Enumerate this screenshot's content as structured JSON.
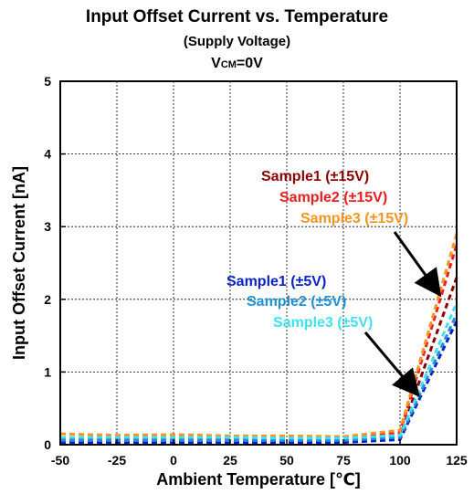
{
  "chart_data": {
    "type": "line",
    "title": "Input Offset Current vs. Temperature",
    "subtitle": "(Supply Voltage)",
    "condition": {
      "main": "V",
      "sub": "CM",
      "rest": "=0V"
    },
    "xlabel": "Ambient Temperature [℃]",
    "ylabel": "Input Offset Current [nA]",
    "xlim": [
      -50,
      125
    ],
    "ylim": [
      0,
      5
    ],
    "xticks": [
      -50,
      -25,
      0,
      25,
      50,
      75,
      100,
      125
    ],
    "yticks": [
      0,
      1,
      2,
      3,
      4,
      5
    ],
    "grid": true,
    "line_style": "dashed",
    "series": [
      {
        "name": "Sample1 (±15V)",
        "color": "#8b0000",
        "x": [
          -50,
          -25,
          0,
          25,
          50,
          75,
          100,
          125
        ],
        "y": [
          0.06,
          0.06,
          0.07,
          0.06,
          0.06,
          0.06,
          0.13,
          2.3
        ]
      },
      {
        "name": "Sample2 (±15V)",
        "color": "#ee1c1c",
        "x": [
          -50,
          -25,
          0,
          25,
          50,
          75,
          100,
          125
        ],
        "y": [
          0.08,
          0.08,
          0.09,
          0.08,
          0.08,
          0.08,
          0.17,
          2.75
        ]
      },
      {
        "name": "Sample3 (±15V)",
        "color": "#f7941d",
        "x": [
          -50,
          -25,
          0,
          25,
          50,
          75,
          100,
          125
        ],
        "y": [
          0.15,
          0.13,
          0.14,
          0.12,
          0.12,
          0.11,
          0.2,
          2.9
        ]
      },
      {
        "name": "Sample1 (±5V)",
        "color": "#0b22c8",
        "x": [
          -50,
          -25,
          0,
          25,
          50,
          75,
          100,
          125
        ],
        "y": [
          0.03,
          0.03,
          0.03,
          0.03,
          0.03,
          0.03,
          0.07,
          1.7
        ]
      },
      {
        "name": "Sample2 (±5V)",
        "color": "#1e90d8",
        "x": [
          -50,
          -25,
          0,
          25,
          50,
          75,
          100,
          125
        ],
        "y": [
          0.06,
          0.06,
          0.06,
          0.06,
          0.06,
          0.06,
          0.1,
          1.8
        ]
      },
      {
        "name": "Sample3 (±5V)",
        "color": "#40e0f0",
        "x": [
          -50,
          -25,
          0,
          25,
          50,
          75,
          100,
          125
        ],
        "y": [
          0.1,
          0.1,
          0.1,
          0.1,
          0.09,
          0.09,
          0.13,
          1.95
        ]
      }
    ]
  }
}
